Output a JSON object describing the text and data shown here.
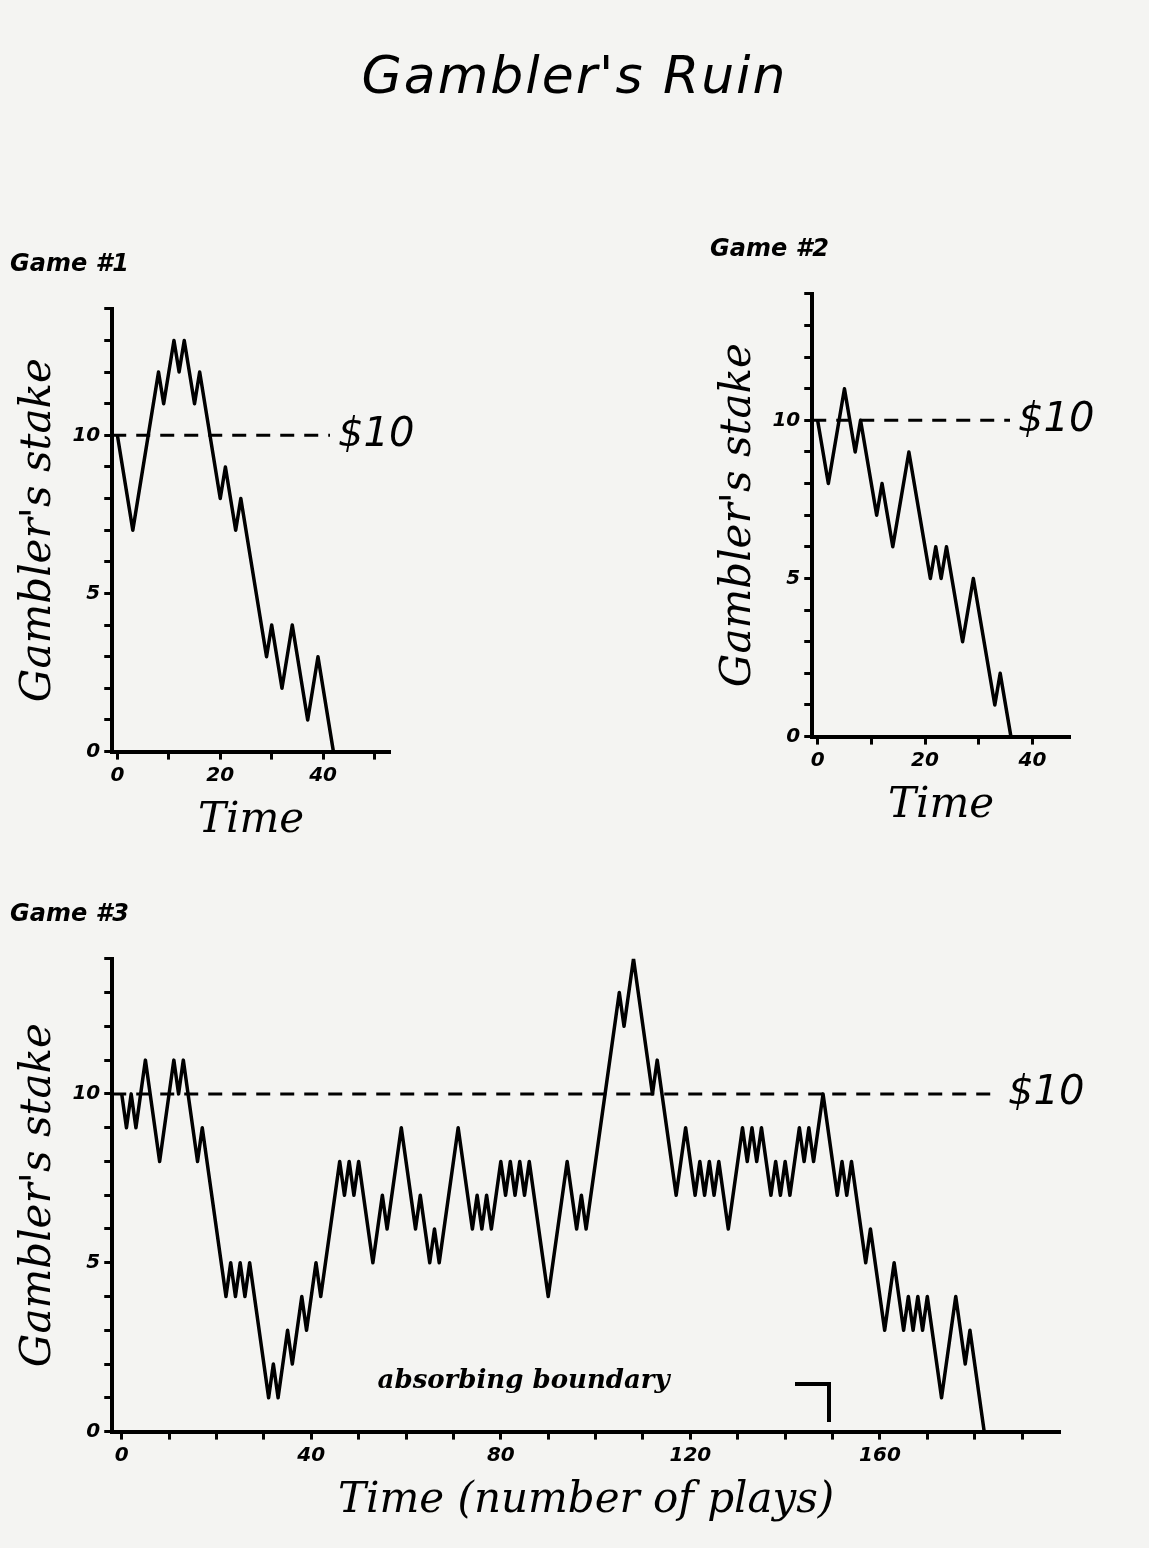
{
  "chart_data": [
    {
      "type": "line",
      "title": "Game #1",
      "xlabel": "Time",
      "ylabel": "Gambler's stake",
      "annotations": [
        "Gambler's Ruin"
      ],
      "marker": "none",
      "line_style": "solid",
      "grid": false,
      "legend": false,
      "xlim": [
        -1,
        53
      ],
      "xticks": [
        0,
        {
          "value": 10,
          "label": null
        },
        20,
        {
          "value": 30,
          "label": null
        },
        40,
        {
          "value": 50,
          "label": null
        }
      ],
      "ylim": [
        0,
        14
      ],
      "yticks": [
        0,
        {
          "value": 1,
          "label": null
        },
        {
          "value": 2,
          "label": null
        },
        {
          "value": 3,
          "label": null
        },
        {
          "value": 4,
          "label": null
        },
        5,
        {
          "value": 6,
          "label": null
        },
        {
          "value": 7,
          "label": null
        },
        {
          "value": 8,
          "label": null
        },
        {
          "value": 9,
          "label": null
        },
        10,
        {
          "value": 11,
          "label": null
        },
        {
          "value": 12,
          "label": null
        },
        {
          "value": 13,
          "label": null
        },
        {
          "value": 14,
          "label": null
        }
      ],
      "ref_lines": [
        {
          "axis": "y",
          "value": 10,
          "label": "$10",
          "line_style": "dashed",
          "color": "#000000"
        }
      ],
      "series": [
        {
          "color": "#000000",
          "x": [
            0,
            3,
            8,
            9,
            11,
            12,
            13,
            15,
            16,
            20,
            21,
            23,
            24,
            29,
            30,
            32,
            34,
            37,
            39,
            42
          ],
          "values": [
            10,
            7,
            12,
            11,
            13,
            12,
            13,
            11,
            12,
            8,
            9,
            7,
            8,
            3,
            4,
            2,
            4,
            1,
            3,
            0
          ]
        }
      ]
    },
    {
      "type": "line",
      "title": "Game #2",
      "xlabel": "Time",
      "ylabel": "Gambler's stake",
      "marker": "none",
      "line_style": "solid",
      "grid": false,
      "legend": false,
      "xlim": [
        -1,
        47
      ],
      "xticks": [
        0,
        {
          "value": 10,
          "label": null
        },
        20,
        {
          "value": 30,
          "label": null
        },
        40
      ],
      "ylim": [
        0,
        14
      ],
      "yticks": [
        0,
        {
          "value": 1,
          "label": null
        },
        {
          "value": 2,
          "label": null
        },
        {
          "value": 3,
          "label": null
        },
        {
          "value": 4,
          "label": null
        },
        5,
        {
          "value": 6,
          "label": null
        },
        {
          "value": 7,
          "label": null
        },
        {
          "value": 8,
          "label": null
        },
        {
          "value": 9,
          "label": null
        },
        10,
        {
          "value": 11,
          "label": null
        },
        {
          "value": 12,
          "label": null
        },
        {
          "value": 13,
          "label": null
        },
        {
          "value": 14,
          "label": null
        }
      ],
      "ref_lines": [
        {
          "axis": "y",
          "value": 10,
          "label": "$10",
          "line_style": "dashed",
          "color": "#000000"
        }
      ],
      "series": [
        {
          "color": "#000000",
          "x": [
            0,
            2,
            5,
            7,
            8,
            11,
            12,
            14,
            17,
            21,
            22,
            23,
            24,
            27,
            29,
            33,
            34,
            36
          ],
          "values": [
            10,
            8,
            11,
            9,
            10,
            7,
            8,
            6,
            9,
            5,
            6,
            5,
            6,
            3,
            5,
            1,
            2,
            0
          ]
        }
      ]
    },
    {
      "type": "line",
      "title": "Game #3",
      "xlabel": "Time (number of plays)",
      "ylabel": "Gambler's stake",
      "annotations": [
        "absorbing boundary"
      ],
      "marker": "none",
      "line_style": "solid",
      "grid": false,
      "legend": false,
      "xlim": [
        -2,
        198
      ],
      "xticks": [
        0,
        {
          "value": 10,
          "label": null
        },
        {
          "value": 20,
          "label": null
        },
        {
          "value": 30,
          "label": null
        },
        40,
        {
          "value": 50,
          "label": null
        },
        {
          "value": 60,
          "label": null
        },
        {
          "value": 70,
          "label": null
        },
        80,
        {
          "value": 90,
          "label": null
        },
        {
          "value": 100,
          "label": null
        },
        {
          "value": 110,
          "label": null
        },
        120,
        {
          "value": 130,
          "label": null
        },
        {
          "value": 140,
          "label": null
        },
        {
          "value": 150,
          "label": null
        },
        160,
        {
          "value": 170,
          "label": null
        },
        {
          "value": 180,
          "label": null
        },
        {
          "value": 190,
          "label": null
        }
      ],
      "ylim": [
        0,
        14
      ],
      "yticks": [
        0,
        {
          "value": 1,
          "label": null
        },
        {
          "value": 2,
          "label": null
        },
        {
          "value": 3,
          "label": null
        },
        {
          "value": 4,
          "label": null
        },
        5,
        {
          "value": 6,
          "label": null
        },
        {
          "value": 7,
          "label": null
        },
        {
          "value": 8,
          "label": null
        },
        {
          "value": 9,
          "label": null
        },
        10,
        {
          "value": 11,
          "label": null
        },
        {
          "value": 12,
          "label": null
        },
        {
          "value": 13,
          "label": null
        },
        {
          "value": 14,
          "label": null
        }
      ],
      "ref_lines": [
        {
          "axis": "y",
          "value": 10,
          "label": "$10",
          "line_style": "dashed",
          "color": "#000000"
        }
      ],
      "series": [
        {
          "color": "#000000",
          "x": [
            0,
            1,
            2,
            3,
            5,
            8,
            11,
            12,
            13,
            16,
            17,
            22,
            23,
            24,
            25,
            26,
            27,
            31,
            32,
            33,
            35,
            36,
            38,
            39,
            41,
            42,
            46,
            47,
            48,
            49,
            50,
            53,
            55,
            56,
            59,
            62,
            63,
            65,
            66,
            67,
            71,
            74,
            75,
            76,
            77,
            78,
            80,
            81,
            82,
            83,
            84,
            85,
            86,
            90,
            94,
            96,
            97,
            98,
            105,
            106,
            108,
            112,
            113,
            117,
            119,
            121,
            122,
            123,
            124,
            125,
            126,
            128,
            131,
            132,
            133,
            134,
            135,
            137,
            138,
            139,
            140,
            141,
            143,
            144,
            145,
            146,
            148,
            151,
            152,
            153,
            154,
            157,
            158,
            161,
            163,
            165,
            166,
            167,
            168,
            169,
            170,
            173,
            176,
            178,
            179,
            182
          ],
          "values": [
            10,
            9,
            10,
            9,
            11,
            8,
            11,
            10,
            11,
            8,
            9,
            4,
            5,
            4,
            5,
            4,
            5,
            1,
            2,
            1,
            3,
            2,
            4,
            3,
            5,
            4,
            8,
            7,
            8,
            7,
            8,
            5,
            7,
            6,
            9,
            6,
            7,
            5,
            6,
            5,
            9,
            6,
            7,
            6,
            7,
            6,
            8,
            7,
            8,
            7,
            8,
            7,
            8,
            4,
            8,
            6,
            7,
            6,
            13,
            12,
            14,
            10,
            11,
            7,
            9,
            7,
            8,
            7,
            8,
            7,
            8,
            6,
            9,
            8,
            9,
            8,
            9,
            7,
            8,
            7,
            8,
            7,
            9,
            8,
            9,
            8,
            10,
            7,
            8,
            7,
            8,
            5,
            6,
            3,
            5,
            3,
            4,
            3,
            4,
            3,
            4,
            1,
            4,
            2,
            3,
            0
          ]
        }
      ]
    }
  ]
}
